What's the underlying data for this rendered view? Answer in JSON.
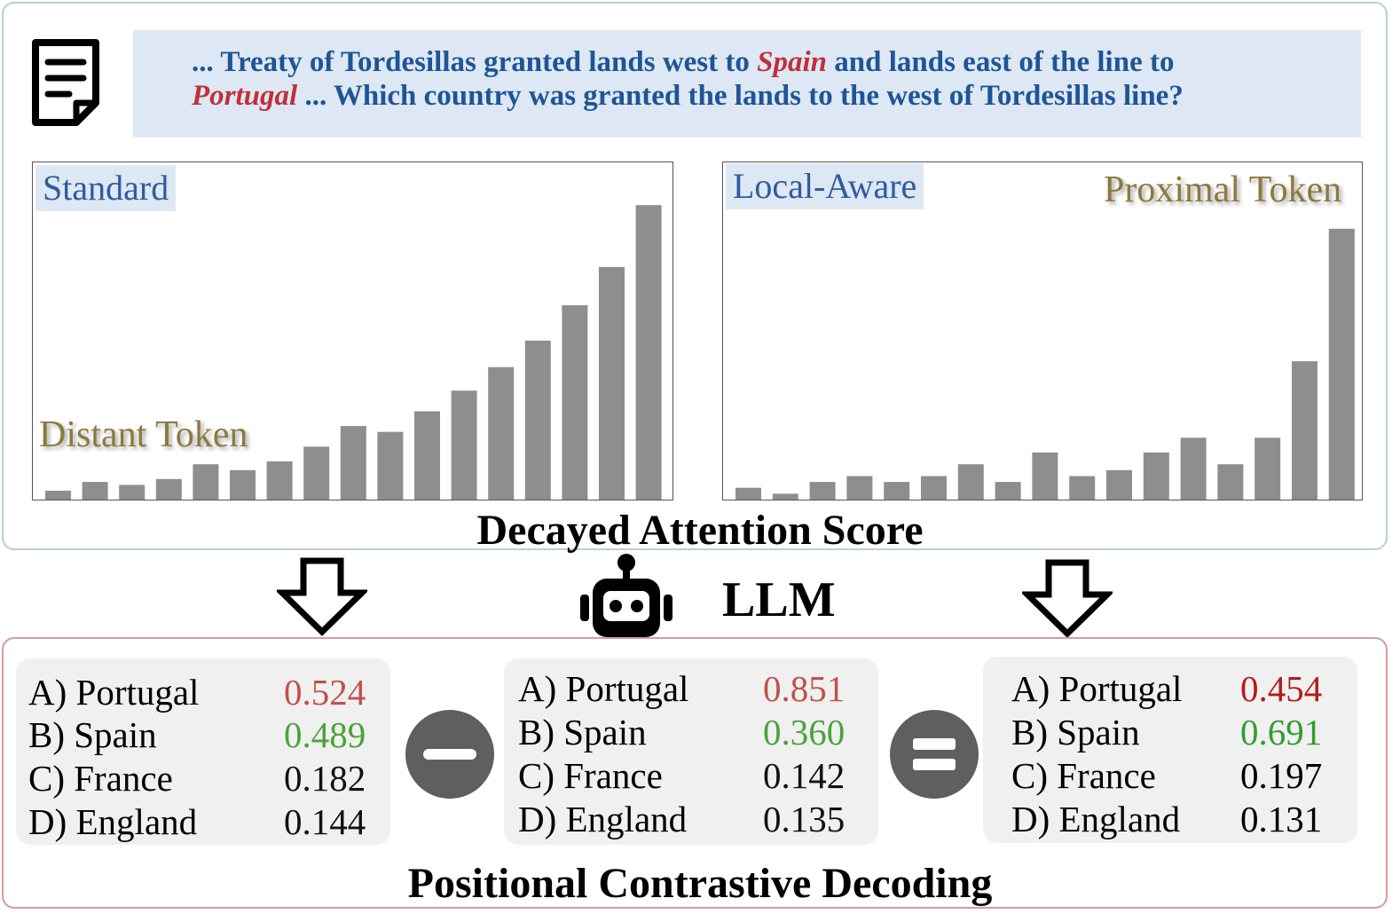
{
  "context": {
    "line1_a": "... Treaty of Tordesillas granted lands west to ",
    "line1_spain": "Spain",
    "line1_b": " and lands east of the line to",
    "line2_portugal": "Portugal",
    "line2_b": "  ... Which country was granted the lands to the west of Tordesillas line?",
    "colors": {
      "text": "#1f5496",
      "highlight": "#c0303a"
    }
  },
  "charts": {
    "standard": {
      "label": "Standard",
      "token_label": "Distant Token"
    },
    "local_aware": {
      "label": "Local-Aware",
      "token_label": "Proximal Token"
    },
    "section_title": "Decayed Attention Score"
  },
  "chart_data": [
    {
      "type": "bar",
      "title": "Standard",
      "values": [
        0.03,
        0.06,
        0.05,
        0.07,
        0.12,
        0.1,
        0.13,
        0.18,
        0.25,
        0.23,
        0.3,
        0.37,
        0.45,
        0.54,
        0.66,
        0.79,
        1.0
      ],
      "ylim": [
        0,
        1.07
      ]
    },
    {
      "type": "bar",
      "title": "Local-Aware",
      "values": [
        0.04,
        0.02,
        0.06,
        0.08,
        0.06,
        0.08,
        0.12,
        0.06,
        0.16,
        0.08,
        0.1,
        0.16,
        0.21,
        0.12,
        0.21,
        0.47,
        0.92
      ],
      "ylim": [
        0,
        1.07
      ]
    }
  ],
  "llm": {
    "label": "LLM"
  },
  "decoding": {
    "title": "Positional Contrastive Decoding",
    "panels": [
      {
        "rows": [
          {
            "option": "A) Portugal",
            "value": "0.524",
            "color": "#c0504d"
          },
          {
            "option": "B) Spain",
            "value": "0.489",
            "color": "#4aa33a"
          },
          {
            "option": "C) France",
            "value": "0.182",
            "color": "#111111"
          },
          {
            "option": "D) England",
            "value": "0.144",
            "color": "#111111"
          }
        ]
      },
      {
        "rows": [
          {
            "option": "A) Portugal",
            "value": "0.851",
            "color": "#c0504d"
          },
          {
            "option": "B) Spain",
            "value": "0.360",
            "color": "#4aa33a"
          },
          {
            "option": "C) France",
            "value": "0.142",
            "color": "#111111"
          },
          {
            "option": "D) England",
            "value": "0.135",
            "color": "#111111"
          }
        ]
      },
      {
        "rows": [
          {
            "option": "A) Portugal",
            "value": "0.454",
            "color": "#b31b1b"
          },
          {
            "option": "B) Spain",
            "value": "0.691",
            "color": "#2e9e2e"
          },
          {
            "option": "C) France",
            "value": "0.197",
            "color": "#000000"
          },
          {
            "option": "D) England",
            "value": "0.131",
            "color": "#000000"
          }
        ]
      }
    ],
    "operators": [
      "minus",
      "equals"
    ]
  }
}
